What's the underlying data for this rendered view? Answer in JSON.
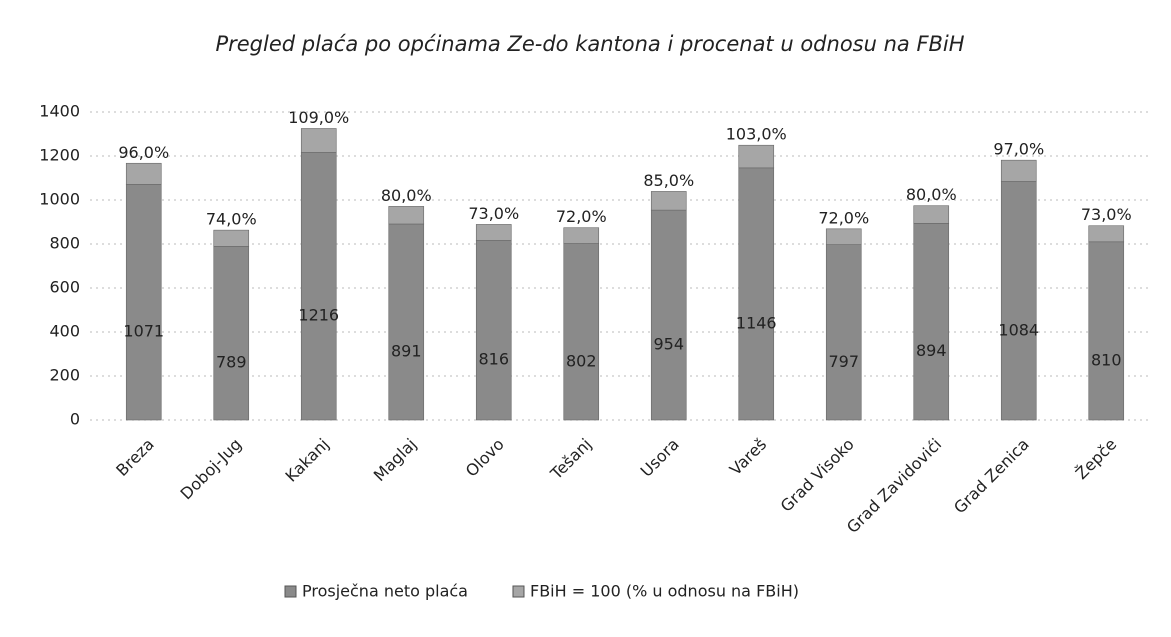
{
  "chart_data": {
    "type": "bar",
    "stacked": true,
    "title": "Pregled plaća po općinama Ze-do kantona i procenat u odnosu na FBiH",
    "categories": [
      "Breza",
      "Doboj-Jug",
      "Kakanj",
      "Maglaj",
      "Olovo",
      "Tešanj",
      "Usora",
      "Vareš",
      "Grad Visoko",
      "Grad Zavidovići",
      "Grad Zenica",
      "Žepče"
    ],
    "series": [
      {
        "name": "Prosječna neto plaća",
        "color": "#8a8a8a",
        "values": [
          1071,
          789,
          1216,
          891,
          816,
          802,
          954,
          1146,
          797,
          894,
          1084,
          810
        ]
      },
      {
        "name": "FBiH = 100 (% u odnosu na FBiH)",
        "color": "#a6a6a6",
        "values": [
          96,
          74,
          109,
          80,
          73,
          72,
          85,
          103,
          72,
          80,
          97,
          73
        ],
        "value_labels": [
          "96,0%",
          "74,0%",
          "109,0%",
          "80,0%",
          "73,0%",
          "72,0%",
          "85,0%",
          "103,0%",
          "72,0%",
          "80,0%",
          "97,0%",
          "73,0%"
        ]
      }
    ],
    "ylim": [
      0,
      1400
    ],
    "yticks": [
      0,
      200,
      400,
      600,
      800,
      1000,
      1200,
      1400
    ],
    "grid": true,
    "legend": "bottom"
  }
}
